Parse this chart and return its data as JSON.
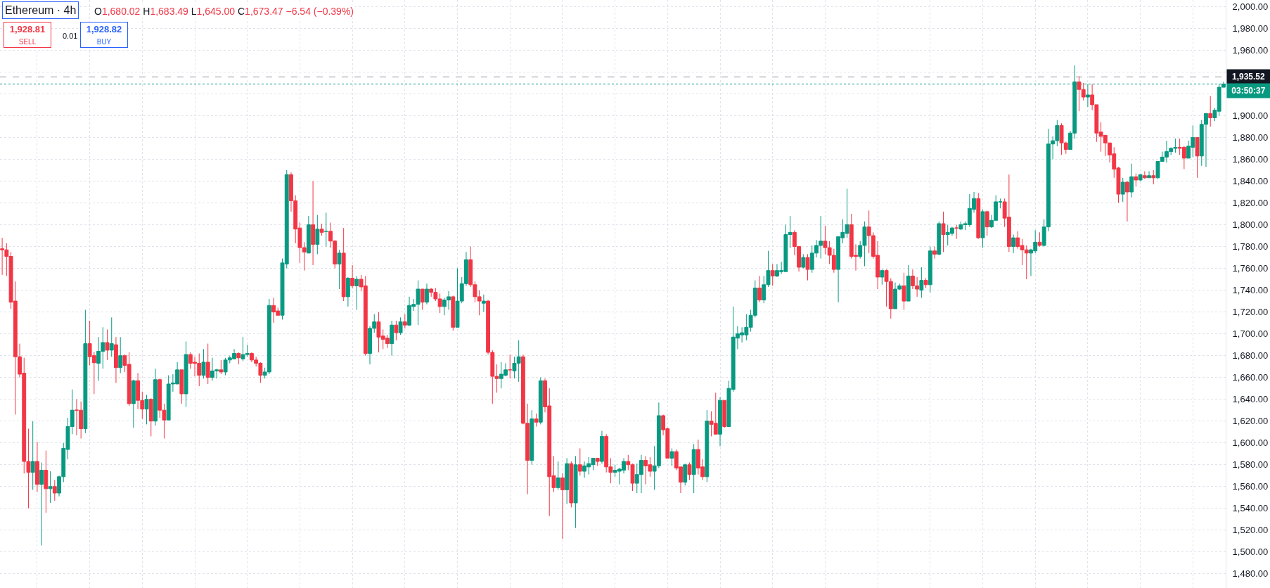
{
  "chart_data": {
    "type": "candlestick",
    "title": "Ethereum · 4h",
    "annotations": [
      "O1,680.02 H1,683.49 L1,645.00 C1,673.47 −6.54 (−0.39%)",
      "1,928.81\nSELL",
      "0.01",
      "1,928.82\nBUY",
      "03:50:37"
    ],
    "categories": [
      null,
      null,
      null,
      null,
      null,
      null,
      null,
      null,
      null,
      null,
      null,
      null,
      null,
      null,
      null,
      null,
      null,
      null,
      null,
      null,
      null,
      null,
      null,
      null,
      null,
      null,
      null,
      null,
      null,
      null,
      null,
      null,
      null,
      null,
      null,
      null,
      null,
      null,
      null,
      null,
      null,
      null,
      null,
      null,
      null,
      null,
      null,
      null,
      null,
      null,
      null,
      null,
      null,
      null,
      null,
      null,
      null,
      null,
      null,
      null,
      null,
      null,
      null,
      null,
      null,
      null,
      null,
      null,
      null,
      null,
      null,
      null,
      null,
      null,
      null,
      null,
      null,
      null,
      null,
      null,
      null,
      null,
      null,
      null,
      null,
      null,
      null,
      null,
      null,
      null,
      null,
      null,
      null,
      null,
      null,
      null,
      null,
      null,
      null,
      null,
      null,
      null,
      null,
      null,
      null,
      null,
      null,
      null,
      null,
      null,
      null,
      null,
      null,
      null,
      null,
      null,
      null,
      null,
      null,
      null,
      null,
      null,
      null,
      null,
      null,
      null,
      null,
      null,
      null,
      null,
      null,
      null,
      null,
      null,
      null,
      null,
      null,
      null,
      null,
      null,
      null,
      null,
      null,
      null,
      null,
      null,
      null,
      null,
      null,
      null,
      null,
      null,
      null,
      null,
      null,
      null,
      null,
      null,
      null,
      null,
      null,
      null,
      null,
      null,
      null,
      null,
      null,
      null,
      null,
      null,
      null,
      null,
      null,
      null,
      null,
      null,
      null,
      null,
      null,
      null,
      null,
      null,
      null,
      null,
      null,
      null,
      null,
      null,
      null,
      null,
      null,
      null,
      null,
      null,
      null,
      null,
      null,
      null,
      null,
      null,
      null,
      null,
      null,
      null,
      null,
      null,
      null,
      null,
      null,
      null,
      null,
      null,
      null,
      null,
      null,
      null,
      null,
      null,
      null,
      null,
      null,
      null,
      null,
      null,
      null,
      null,
      null,
      null,
      null,
      null,
      null,
      null,
      null,
      null,
      null,
      null,
      null,
      null,
      null,
      null,
      null,
      null,
      null,
      null,
      null,
      null,
      null,
      null,
      null,
      null,
      null,
      null,
      null,
      null,
      null,
      null,
      null,
      null,
      null,
      null,
      null,
      null,
      null,
      null,
      null,
      null,
      null,
      null,
      null,
      null,
      null,
      null,
      null,
      null,
      null,
      null,
      null,
      null,
      null,
      null
    ],
    "ohlc": [
      [
        1778,
        1788,
        1754,
        1777
      ],
      [
        1777,
        1783,
        1753,
        1771
      ],
      [
        1771,
        1775,
        1723,
        1729
      ],
      [
        1730,
        1748,
        1626,
        1679
      ],
      [
        1679,
        1691,
        1660,
        1663
      ],
      [
        1664,
        1678,
        1572,
        1583
      ],
      [
        1583,
        1613,
        1540,
        1573
      ],
      [
        1573,
        1620,
        1557,
        1583
      ],
      [
        1583,
        1601,
        1555,
        1562
      ],
      [
        1562,
        1582,
        1506,
        1575
      ],
      [
        1575,
        1593,
        1536,
        1558
      ],
      [
        1558,
        1574,
        1545,
        1560
      ],
      [
        1560,
        1566,
        1547,
        1554
      ],
      [
        1554,
        1570,
        1551,
        1569
      ],
      [
        1569,
        1600,
        1564,
        1595
      ],
      [
        1594,
        1623,
        1585,
        1615
      ],
      [
        1615,
        1649,
        1608,
        1630
      ],
      [
        1630,
        1640,
        1607,
        1630
      ],
      [
        1630,
        1638,
        1604,
        1613
      ],
      [
        1613,
        1722,
        1609,
        1691
      ],
      [
        1691,
        1712,
        1671,
        1679
      ],
      [
        1680.02,
        1683.49,
        1645.0,
        1673.47
      ],
      [
        1673,
        1697,
        1657,
        1684
      ],
      [
        1684,
        1706,
        1668,
        1692
      ],
      [
        1692,
        1704,
        1676,
        1685
      ],
      [
        1685,
        1715,
        1679,
        1691
      ],
      [
        1690,
        1697,
        1655,
        1669
      ],
      [
        1669,
        1697,
        1664,
        1680
      ],
      [
        1680,
        1681,
        1665,
        1671
      ],
      [
        1672,
        1683,
        1634,
        1636
      ],
      [
        1636,
        1658,
        1614,
        1657
      ],
      [
        1657,
        1664,
        1631,
        1639
      ],
      [
        1639,
        1647,
        1622,
        1631
      ],
      [
        1631,
        1644,
        1617,
        1640
      ],
      [
        1640,
        1641,
        1606,
        1620
      ],
      [
        1620,
        1668,
        1616,
        1658
      ],
      [
        1658,
        1659,
        1623,
        1630
      ],
      [
        1630,
        1636,
        1604,
        1621
      ],
      [
        1621,
        1662,
        1621,
        1654
      ],
      [
        1654,
        1663,
        1647,
        1655
      ],
      [
        1654,
        1674,
        1654,
        1667
      ],
      [
        1667,
        1667,
        1636,
        1645
      ],
      [
        1645,
        1693,
        1633,
        1681
      ],
      [
        1681,
        1683,
        1668,
        1673
      ],
      [
        1674,
        1679,
        1661,
        1673
      ],
      [
        1673,
        1682,
        1652,
        1662
      ],
      [
        1662,
        1686,
        1659,
        1674
      ],
      [
        1674,
        1691,
        1654,
        1660
      ],
      [
        1660,
        1678,
        1657,
        1666
      ],
      [
        1666,
        1668,
        1659,
        1667
      ],
      [
        1667,
        1676,
        1663,
        1665
      ],
      [
        1665,
        1678,
        1662,
        1676
      ],
      [
        1676,
        1680,
        1673,
        1678
      ],
      [
        1677,
        1686,
        1677,
        1682
      ],
      [
        1682,
        1683,
        1672,
        1678
      ],
      [
        1677,
        1697,
        1675,
        1681
      ],
      [
        1681,
        1690,
        1679,
        1682
      ],
      [
        1682,
        1683,
        1674,
        1676
      ],
      [
        1676,
        1679,
        1670,
        1673
      ],
      [
        1673,
        1674,
        1655,
        1662
      ],
      [
        1662,
        1669,
        1659,
        1665
      ],
      [
        1665,
        1732,
        1663,
        1726
      ],
      [
        1726,
        1733,
        1710,
        1720
      ],
      [
        1721,
        1724,
        1717,
        1717
      ],
      [
        1717,
        1769,
        1713,
        1765
      ],
      [
        1764,
        1850,
        1760,
        1846
      ],
      [
        1846,
        1848,
        1812,
        1822
      ],
      [
        1822,
        1827,
        1783,
        1796
      ],
      [
        1797,
        1802,
        1765,
        1779
      ],
      [
        1779,
        1784,
        1758,
        1775
      ],
      [
        1774,
        1808,
        1774,
        1800
      ],
      [
        1800,
        1840,
        1763,
        1782
      ],
      [
        1782,
        1809,
        1773,
        1796
      ],
      [
        1796,
        1801,
        1790,
        1793
      ],
      [
        1794,
        1811,
        1780,
        1794
      ],
      [
        1794,
        1802,
        1779,
        1785
      ],
      [
        1785,
        1786,
        1760,
        1764
      ],
      [
        1764,
        1777,
        1741,
        1774
      ],
      [
        1774,
        1797,
        1730,
        1734
      ],
      [
        1734,
        1752,
        1725,
        1751
      ],
      [
        1751,
        1763,
        1742,
        1744
      ],
      [
        1744,
        1753,
        1722,
        1750
      ],
      [
        1750,
        1754,
        1739,
        1743
      ],
      [
        1744,
        1753,
        1680,
        1682
      ],
      [
        1682,
        1707,
        1672,
        1705
      ],
      [
        1705,
        1718,
        1701,
        1711
      ],
      [
        1711,
        1720,
        1683,
        1697
      ],
      [
        1698,
        1704,
        1686,
        1695
      ],
      [
        1696,
        1699,
        1687,
        1691
      ],
      [
        1691,
        1712,
        1680,
        1708
      ],
      [
        1708,
        1712,
        1694,
        1701
      ],
      [
        1701,
        1715,
        1699,
        1711
      ],
      [
        1711,
        1718,
        1705,
        1708
      ],
      [
        1708,
        1734,
        1707,
        1726
      ],
      [
        1725,
        1732,
        1721,
        1727
      ],
      [
        1727,
        1749,
        1708,
        1741
      ],
      [
        1741,
        1741,
        1722,
        1729
      ],
      [
        1729,
        1746,
        1727,
        1741
      ],
      [
        1741,
        1742,
        1734,
        1738
      ],
      [
        1738,
        1742,
        1730,
        1732
      ],
      [
        1732,
        1737,
        1719,
        1725
      ],
      [
        1725,
        1733,
        1717,
        1731
      ],
      [
        1731,
        1739,
        1722,
        1734
      ],
      [
        1734,
        1735,
        1703,
        1706
      ],
      [
        1706,
        1760,
        1706,
        1730
      ],
      [
        1730,
        1752,
        1728,
        1746
      ],
      [
        1746,
        1775,
        1744,
        1768
      ],
      [
        1768,
        1780,
        1743,
        1745
      ],
      [
        1745,
        1748,
        1729,
        1734
      ],
      [
        1734,
        1740,
        1717,
        1730
      ],
      [
        1728,
        1736,
        1720,
        1730
      ],
      [
        1730,
        1731,
        1681,
        1683
      ],
      [
        1683,
        1685,
        1636,
        1661
      ],
      [
        1661,
        1672,
        1646,
        1659
      ],
      [
        1659,
        1674,
        1650,
        1663
      ],
      [
        1662,
        1673,
        1661,
        1667
      ],
      [
        1667,
        1681,
        1659,
        1667
      ],
      [
        1666,
        1679,
        1659,
        1673
      ],
      [
        1673,
        1694,
        1656,
        1679
      ],
      [
        1679,
        1681,
        1617,
        1618
      ],
      [
        1618,
        1636,
        1553,
        1584
      ],
      [
        1584,
        1630,
        1580,
        1622
      ],
      [
        1622,
        1627,
        1615,
        1619
      ],
      [
        1619,
        1660,
        1617,
        1657
      ],
      [
        1657,
        1659,
        1628,
        1633
      ],
      [
        1634,
        1650,
        1533,
        1569
      ],
      [
        1570,
        1588,
        1555,
        1559
      ],
      [
        1559,
        1583,
        1557,
        1568
      ],
      [
        1568,
        1572,
        1512,
        1557
      ],
      [
        1557,
        1586,
        1544,
        1581
      ],
      [
        1581,
        1583,
        1541,
        1545
      ],
      [
        1545,
        1588,
        1522,
        1580
      ],
      [
        1580,
        1595,
        1570,
        1574
      ],
      [
        1574,
        1583,
        1568,
        1579
      ],
      [
        1578,
        1587,
        1571,
        1581
      ],
      [
        1580,
        1586,
        1575,
        1586
      ],
      [
        1586,
        1586,
        1579,
        1583
      ],
      [
        1583,
        1611,
        1581,
        1606
      ],
      [
        1606,
        1608,
        1573,
        1578
      ],
      [
        1578,
        1586,
        1563,
        1573
      ],
      [
        1573,
        1580,
        1569,
        1575
      ],
      [
        1574,
        1577,
        1562,
        1576
      ],
      [
        1575,
        1586,
        1572,
        1583
      ],
      [
        1583,
        1589,
        1575,
        1580
      ],
      [
        1580,
        1581,
        1556,
        1563
      ],
      [
        1563,
        1581,
        1554,
        1571
      ],
      [
        1571,
        1589,
        1554,
        1584
      ],
      [
        1584,
        1588,
        1562,
        1579
      ],
      [
        1580,
        1587,
        1569,
        1574
      ],
      [
        1574,
        1597,
        1557,
        1579
      ],
      [
        1579,
        1637,
        1577,
        1625
      ],
      [
        1625,
        1626,
        1607,
        1612
      ],
      [
        1613,
        1614,
        1586,
        1586
      ],
      [
        1586,
        1595,
        1579,
        1592
      ],
      [
        1592,
        1594,
        1575,
        1577
      ],
      [
        1578,
        1578,
        1554,
        1564
      ],
      [
        1564,
        1581,
        1561,
        1580
      ],
      [
        1580,
        1582,
        1566,
        1571
      ],
      [
        1571,
        1599,
        1554,
        1594
      ],
      [
        1594,
        1603,
        1571,
        1577
      ],
      [
        1578,
        1585,
        1566,
        1569
      ],
      [
        1569,
        1630,
        1564,
        1620
      ],
      [
        1620,
        1629,
        1606,
        1617
      ],
      [
        1618,
        1646,
        1608,
        1608
      ],
      [
        1608,
        1642,
        1597,
        1639
      ],
      [
        1639,
        1639,
        1614,
        1615
      ],
      [
        1615,
        1657,
        1615,
        1650
      ],
      [
        1649,
        1725,
        1647,
        1697
      ],
      [
        1696,
        1707,
        1686,
        1700
      ],
      [
        1699,
        1706,
        1692,
        1701
      ],
      [
        1699,
        1718,
        1694,
        1706
      ],
      [
        1706,
        1722,
        1702,
        1717
      ],
      [
        1717,
        1749,
        1715,
        1742
      ],
      [
        1742,
        1753,
        1729,
        1731
      ],
      [
        1731,
        1753,
        1728,
        1745
      ],
      [
        1745,
        1776,
        1743,
        1758
      ],
      [
        1758,
        1764,
        1744,
        1753
      ],
      [
        1753,
        1764,
        1752,
        1758
      ],
      [
        1757,
        1766,
        1755,
        1758
      ],
      [
        1757,
        1800,
        1757,
        1791
      ],
      [
        1791,
        1808,
        1779,
        1793
      ],
      [
        1793,
        1795,
        1772,
        1780
      ],
      [
        1780,
        1780,
        1757,
        1761
      ],
      [
        1761,
        1773,
        1760,
        1770
      ],
      [
        1770,
        1773,
        1749,
        1759
      ],
      [
        1759,
        1781,
        1756,
        1774
      ],
      [
        1774,
        1786,
        1770,
        1781
      ],
      [
        1781,
        1808,
        1769,
        1785
      ],
      [
        1785,
        1799,
        1773,
        1779
      ],
      [
        1779,
        1785,
        1764,
        1772
      ],
      [
        1772,
        1778,
        1756,
        1759
      ],
      [
        1759,
        1789,
        1729,
        1789
      ],
      [
        1788,
        1805,
        1783,
        1793
      ],
      [
        1792,
        1833,
        1788,
        1800
      ],
      [
        1800,
        1810,
        1769,
        1771
      ],
      [
        1772,
        1782,
        1758,
        1771
      ],
      [
        1771,
        1785,
        1769,
        1781
      ],
      [
        1781,
        1803,
        1762,
        1798
      ],
      [
        1798,
        1813,
        1774,
        1790
      ],
      [
        1790,
        1793,
        1769,
        1771
      ],
      [
        1772,
        1785,
        1741,
        1752
      ],
      [
        1752,
        1759,
        1745,
        1758
      ],
      [
        1758,
        1759,
        1725,
        1748
      ],
      [
        1748,
        1751,
        1714,
        1723
      ],
      [
        1723,
        1747,
        1723,
        1741
      ],
      [
        1741,
        1746,
        1740,
        1744
      ],
      [
        1744,
        1756,
        1722,
        1730
      ],
      [
        1730,
        1763,
        1730,
        1753
      ],
      [
        1753,
        1759,
        1741,
        1744
      ],
      [
        1744,
        1752,
        1734,
        1741
      ],
      [
        1740,
        1761,
        1733,
        1749
      ],
      [
        1749,
        1751,
        1742,
        1745
      ],
      [
        1745,
        1780,
        1738,
        1776
      ],
      [
        1776,
        1780,
        1769,
        1773
      ],
      [
        1773,
        1803,
        1772,
        1801
      ],
      [
        1801,
        1812,
        1775,
        1791
      ],
      [
        1791,
        1800,
        1781,
        1793
      ],
      [
        1792,
        1798,
        1790,
        1797
      ],
      [
        1797,
        1800,
        1787,
        1797
      ],
      [
        1796,
        1803,
        1795,
        1800
      ],
      [
        1800,
        1803,
        1795,
        1801
      ],
      [
        1800,
        1828,
        1798,
        1815
      ],
      [
        1814,
        1830,
        1811,
        1824
      ],
      [
        1824,
        1829,
        1787,
        1788
      ],
      [
        1788,
        1814,
        1779,
        1812
      ],
      [
        1812,
        1813,
        1790,
        1798
      ],
      [
        1798,
        1809,
        1797,
        1804
      ],
      [
        1804,
        1827,
        1804,
        1821
      ],
      [
        1821,
        1824,
        1815,
        1821
      ],
      [
        1821,
        1824,
        1798,
        1806
      ],
      [
        1807,
        1846,
        1775,
        1780
      ],
      [
        1780,
        1791,
        1774,
        1788
      ],
      [
        1788,
        1794,
        1778,
        1780
      ],
      [
        1781,
        1787,
        1763,
        1777
      ],
      [
        1777,
        1781,
        1750,
        1774
      ],
      [
        1774,
        1778,
        1753,
        1777
      ],
      [
        1776,
        1795,
        1774,
        1784
      ],
      [
        1784,
        1793,
        1780,
        1781
      ],
      [
        1781,
        1805,
        1780,
        1798
      ],
      [
        1798,
        1888,
        1794,
        1874
      ],
      [
        1874,
        1881,
        1860,
        1877
      ],
      [
        1877,
        1896,
        1872,
        1891
      ],
      [
        1891,
        1893,
        1864,
        1875
      ],
      [
        1875,
        1876,
        1865,
        1869
      ],
      [
        1869,
        1886,
        1869,
        1884
      ],
      [
        1884,
        1946,
        1879,
        1931
      ],
      [
        1931,
        1936,
        1904,
        1924
      ],
      [
        1924,
        1930,
        1914,
        1917
      ],
      [
        1917,
        1929,
        1908,
        1919
      ],
      [
        1919,
        1929,
        1905,
        1910
      ],
      [
        1910,
        1910,
        1876,
        1884
      ],
      [
        1885,
        1894,
        1867,
        1881
      ],
      [
        1882,
        1882,
        1863,
        1875
      ],
      [
        1875,
        1875,
        1857,
        1864
      ],
      [
        1865,
        1871,
        1843,
        1851
      ],
      [
        1852,
        1853,
        1820,
        1828
      ],
      [
        1828,
        1843,
        1821,
        1839
      ],
      [
        1839,
        1840,
        1803,
        1830
      ],
      [
        1830,
        1856,
        1825,
        1844
      ],
      [
        1844,
        1847,
        1835,
        1841
      ],
      [
        1841,
        1846,
        1840,
        1846
      ],
      [
        1845,
        1849,
        1842,
        1843
      ],
      [
        1843,
        1849,
        1843,
        1845
      ],
      [
        1845,
        1850,
        1837,
        1843
      ],
      [
        1843,
        1858,
        1842,
        1858
      ],
      [
        1858,
        1867,
        1858,
        1862
      ],
      [
        1862,
        1877,
        1857,
        1867
      ],
      [
        1867,
        1871,
        1864,
        1870
      ],
      [
        1870,
        1879,
        1866,
        1871
      ],
      [
        1871,
        1879,
        1864,
        1870
      ],
      [
        1871,
        1872,
        1851,
        1861
      ],
      [
        1861,
        1877,
        1861,
        1872
      ],
      [
        1871,
        1891,
        1862,
        1880
      ],
      [
        1880,
        1880,
        1843,
        1863
      ],
      [
        1863,
        1896,
        1854,
        1892
      ],
      [
        1892,
        1902,
        1853,
        1902
      ],
      [
        1902,
        1918,
        1890,
        1898
      ],
      [
        1898,
        1907,
        1895,
        1905
      ],
      [
        1904,
        1929,
        1900,
        1926
      ],
      [
        1926,
        1931,
        1926,
        1929
      ]
    ],
    "colors": [
      "#f23645",
      "#f23645",
      "#f23645",
      "#f23645",
      "#f23645",
      "#f23645",
      "#f23645",
      "#089981",
      "#f23645",
      "#089981",
      "#f23645",
      "#089981",
      "#f23645",
      "#089981",
      "#089981",
      "#089981",
      "#089981",
      "#f23645",
      "#f23645",
      "#089981",
      "#f23645",
      "#f23645",
      "#089981",
      "#089981",
      "#f23645",
      "#089981",
      "#f23645",
      "#089981",
      "#f23645",
      "#f23645",
      "#089981",
      "#f23645",
      "#f23645",
      "#089981",
      "#f23645",
      "#089981",
      "#f23645",
      "#f23645",
      "#089981",
      "#089981",
      "#089981",
      "#f23645",
      "#089981",
      "#f23645",
      "#f23645",
      "#f23645",
      "#089981",
      "#f23645",
      "#089981",
      "#089981",
      "#f23645",
      "#089981",
      "#089981",
      "#089981",
      "#f23645",
      "#089981",
      "#089981",
      "#f23645",
      "#f23645",
      "#f23645",
      "#089981",
      "#089981",
      "#f23645",
      "#f23645",
      "#089981",
      "#089981",
      "#f23645",
      "#f23645",
      "#f23645",
      "#f23645",
      "#089981",
      "#f23645",
      "#089981",
      "#f23645",
      "#089981",
      "#f23645",
      "#f23645",
      "#089981",
      "#f23645",
      "#089981",
      "#f23645",
      "#089981",
      "#f23645",
      "#f23645",
      "#089981",
      "#089981",
      "#f23645",
      "#f23645",
      "#f23645",
      "#089981",
      "#f23645",
      "#089981",
      "#f23645",
      "#089981",
      "#089981",
      "#089981",
      "#f23645",
      "#089981",
      "#f23645",
      "#f23645",
      "#f23645",
      "#089981",
      "#089981",
      "#f23645",
      "#089981",
      "#089981",
      "#089981",
      "#f23645",
      "#f23645",
      "#f23645",
      "#089981",
      "#f23645",
      "#f23645",
      "#f23645",
      "#089981",
      "#089981",
      "#f23645",
      "#089981",
      "#089981",
      "#f23645",
      "#f23645",
      "#089981",
      "#f23645",
      "#089981",
      "#f23645",
      "#f23645",
      "#f23645",
      "#089981",
      "#f23645",
      "#089981",
      "#f23645",
      "#089981",
      "#f23645",
      "#089981",
      "#089981",
      "#089981",
      "#f23645",
      "#089981",
      "#f23645",
      "#f23645",
      "#089981",
      "#089981",
      "#089981",
      "#f23645",
      "#f23645",
      "#089981",
      "#089981",
      "#f23645",
      "#f23645",
      "#089981",
      "#089981",
      "#f23645",
      "#f23645",
      "#089981",
      "#f23645",
      "#f23645",
      "#089981",
      "#f23645",
      "#089981",
      "#f23645",
      "#f23645",
      "#089981",
      "#f23645",
      "#f23645",
      "#089981",
      "#f23645",
      "#089981",
      "#089981",
      "#089981",
      "#089981",
      "#089981",
      "#089981",
      "#089981",
      "#f23645",
      "#089981",
      "#089981",
      "#f23645",
      "#089981",
      "#089981",
      "#089981",
      "#089981",
      "#f23645",
      "#f23645",
      "#089981",
      "#f23645",
      "#089981",
      "#089981",
      "#089981",
      "#f23645",
      "#f23645",
      "#f23645",
      "#089981",
      "#089981",
      "#089981",
      "#f23645",
      "#f23645",
      "#089981",
      "#089981",
      "#f23645",
      "#f23645",
      "#f23645",
      "#089981",
      "#f23645",
      "#f23645",
      "#089981",
      "#089981",
      "#f23645",
      "#089981",
      "#f23645",
      "#f23645",
      "#089981",
      "#f23645",
      "#089981",
      "#f23645",
      "#089981",
      "#f23645",
      "#089981",
      "#089981",
      "#f23645",
      "#089981",
      "#089981",
      "#089981",
      "#089981",
      "#f23645",
      "#089981",
      "#f23645",
      "#089981",
      "#089981",
      "#089981",
      "#f23645",
      "#f23645",
      "#089981",
      "#f23645",
      "#f23645",
      "#f23645",
      "#089981",
      "#089981",
      "#f23645",
      "#089981",
      "#089981",
      "#089981",
      "#089981",
      "#f23645",
      "#f23645",
      "#089981",
      "#089981",
      "#f23645",
      "#f23645",
      "#089981",
      "#f23645",
      "#f23645",
      "#f23645",
      "#f23645",
      "#f23645",
      "#f23645",
      "#f23645",
      "#089981",
      "#f23645",
      "#089981",
      "#f23645",
      "#089981",
      "#f23645",
      "#089981",
      "#f23645",
      "#089981",
      "#089981",
      "#089981",
      "#089981",
      "#089981",
      "#f23645",
      "#f23645",
      "#089981",
      "#089981",
      "#f23645",
      "#089981",
      "#089981",
      "#f23645",
      "#089981",
      "#089981",
      "#089981"
    ],
    "ylim": [
      1467,
      2006
    ],
    "yticks": [
      {
        "value": 1480,
        "label": "1,480.00"
      },
      {
        "value": 1500,
        "label": "1,500.00"
      },
      {
        "value": 1520,
        "label": "1,520.00"
      },
      {
        "value": 1540,
        "label": "1,540.00"
      },
      {
        "value": 1560,
        "label": "1,560.00"
      },
      {
        "value": 1580,
        "label": "1,580.00"
      },
      {
        "value": 1600,
        "label": "1,600.00"
      },
      {
        "value": 1620,
        "label": "1,620.00"
      },
      {
        "value": 1640,
        "label": "1,640.00"
      },
      {
        "value": 1660,
        "label": "1,660.00"
      },
      {
        "value": 1680,
        "label": "1,680.00"
      },
      {
        "value": 1700,
        "label": "1,700.00"
      },
      {
        "value": 1720,
        "label": "1,720.00"
      },
      {
        "value": 1740,
        "label": "1,740.00"
      },
      {
        "value": 1760,
        "label": "1,760.00"
      },
      {
        "value": 1780,
        "label": "1,780.00"
      },
      {
        "value": 1800,
        "label": "1,800.00"
      },
      {
        "value": 1820,
        "label": "1,820.00"
      },
      {
        "value": 1840,
        "label": "1,840.00"
      },
      {
        "value": 1860,
        "label": "1,860.00"
      },
      {
        "value": 1880,
        "label": "1,880.00"
      },
      {
        "value": 1900,
        "label": "1,900.00"
      },
      {
        "value": 1920,
        "label": null
      },
      {
        "value": 1940,
        "label": null
      },
      {
        "value": 1960,
        "label": "1,960.00"
      },
      {
        "value": 1980,
        "label": "1,980.00"
      },
      {
        "value": 2000,
        "label": "2,000.00"
      }
    ],
    "grid": true,
    "tick_labels": "y",
    "ref_lines": [
      {
        "axis": "y",
        "value": 1935.52,
        "label": "1,935.52",
        "color": "#9598a1",
        "line_style": "dashed"
      },
      {
        "axis": "y",
        "value": 1929,
        "color": "#089981",
        "line_style": "dotted"
      }
    ]
  }
}
